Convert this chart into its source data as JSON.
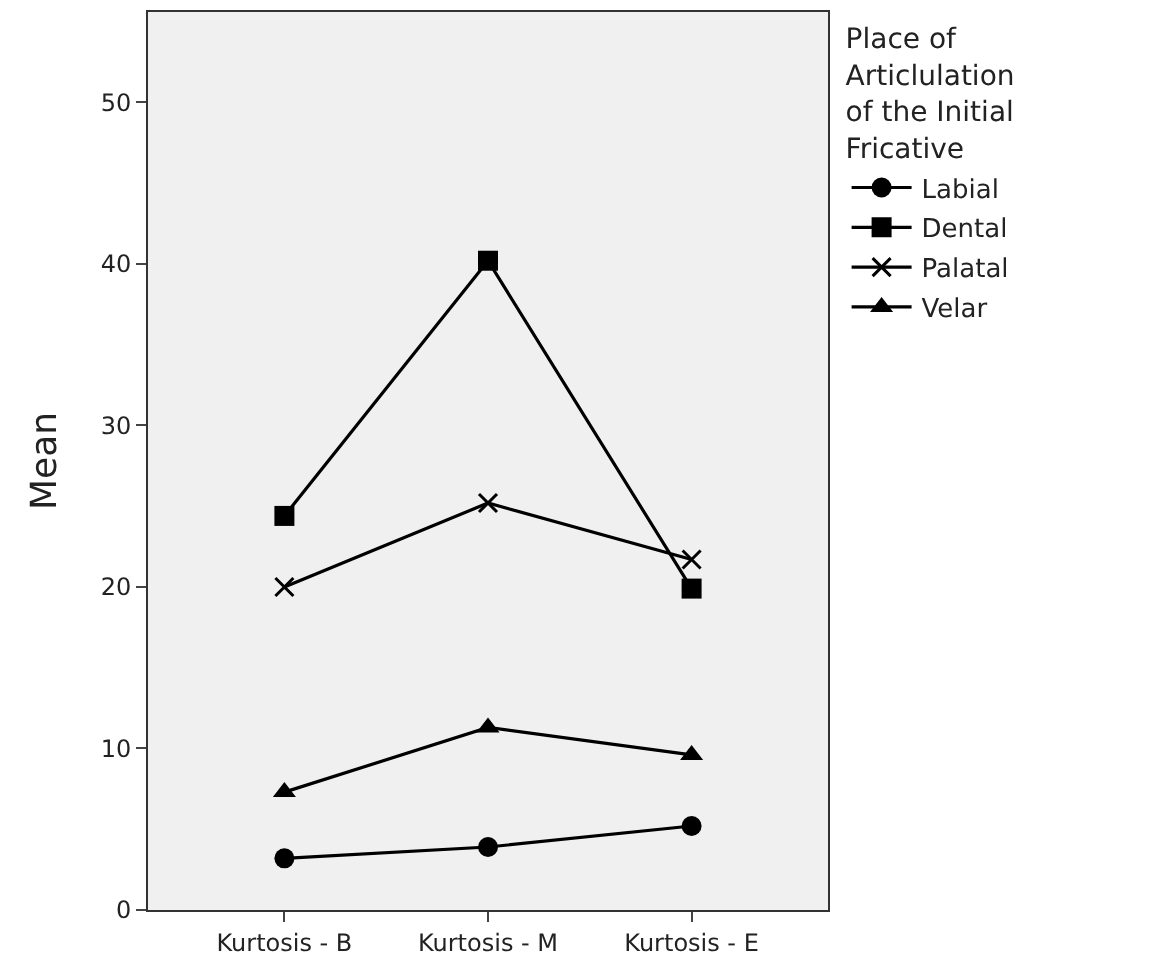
{
  "chart_data": {
    "type": "line",
    "ylabel": "Mean",
    "legend_title": "Place of Articlulation of the Initial Fricative",
    "legend": "right",
    "grid": false,
    "categories": [
      "Kurtosis - B",
      "Kurtosis - M",
      "Kurtosis - E"
    ],
    "ylim": [
      0,
      55.6
    ],
    "yticks": [
      0,
      10,
      20,
      30,
      40,
      50
    ],
    "series": [
      {
        "name": "Labial",
        "color": "#000000",
        "marker": "circle",
        "values": [
          3.2,
          3.9,
          5.2
        ]
      },
      {
        "name": "Dental",
        "color": "#000000",
        "marker": "square",
        "values": [
          24.4,
          40.2,
          19.9
        ]
      },
      {
        "name": "Palatal",
        "color": "#000000",
        "marker": "cross",
        "values": [
          20.0,
          25.2,
          21.7
        ]
      },
      {
        "name": "Velar",
        "color": "#000000",
        "marker": "triangle",
        "values": [
          7.3,
          11.3,
          9.6
        ]
      }
    ]
  }
}
